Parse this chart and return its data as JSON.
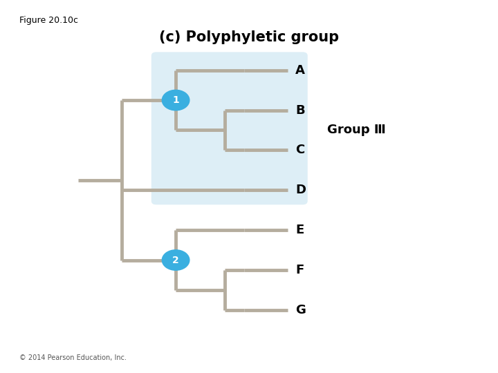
{
  "title": "(c) Polyphyletic group",
  "figure_label": "Figure 20.10c",
  "copyright": "© 2014 Pearson Education, Inc.",
  "tree_color": "#b5ad9e",
  "highlight_color": "#ddeef6",
  "node_color": "#3aafe0",
  "node_text_color": "#ffffff",
  "taxa": [
    "A",
    "B",
    "C",
    "D",
    "E",
    "F",
    "G"
  ],
  "group_label": "Group Ⅲ",
  "line_width": 3.5,
  "background_color": "#ffffff",
  "title_fontsize": 15,
  "label_fontsize": 13,
  "fig_label_fontsize": 9,
  "copyright_fontsize": 7
}
